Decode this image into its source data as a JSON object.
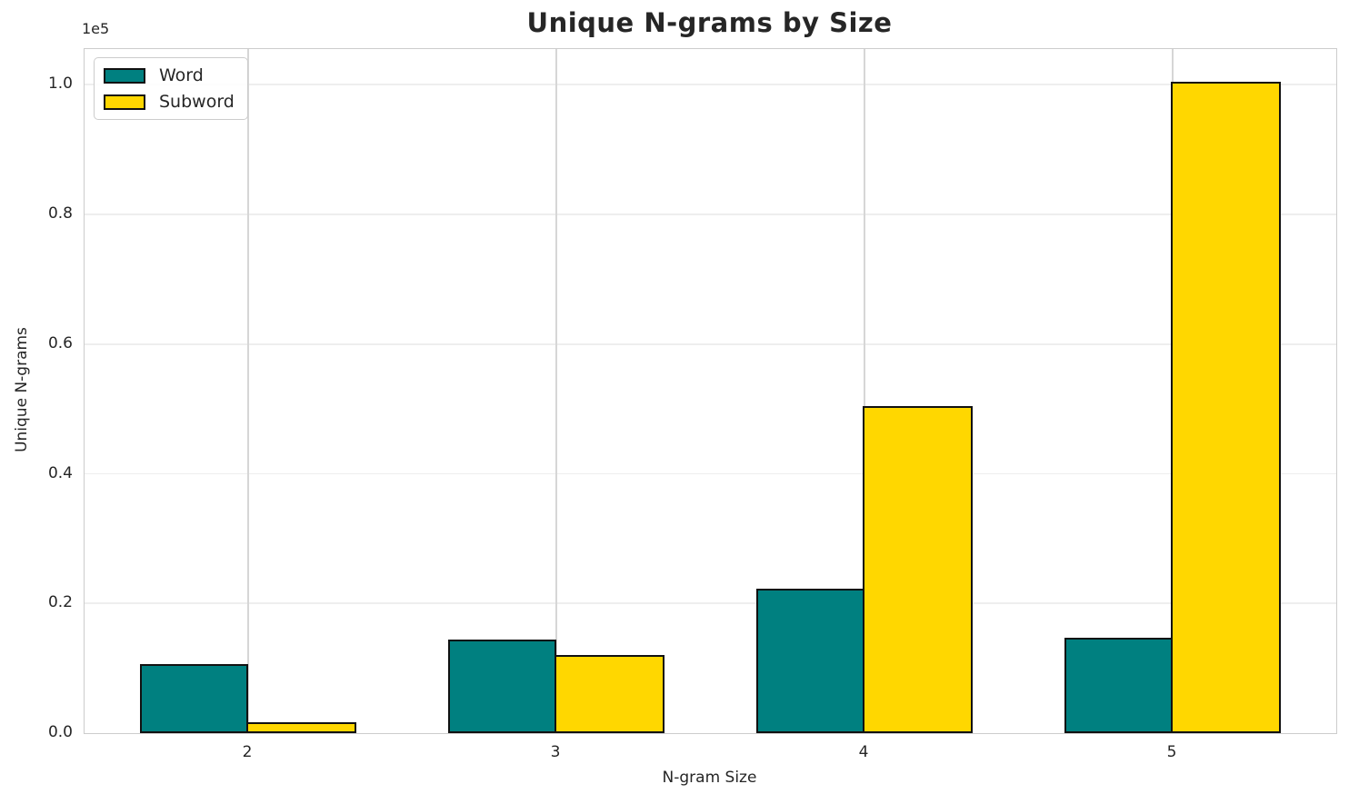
{
  "chart_data": {
    "type": "bar",
    "title": "Unique N-grams by Size",
    "xlabel": "N-gram Size",
    "ylabel": "Unique N-grams",
    "y_offset_text": "1e5",
    "categories": [
      "2",
      "3",
      "4",
      "5"
    ],
    "series": [
      {
        "name": "Word",
        "color": "#008080",
        "values": [
          10700,
          14400,
          22300,
          14700
        ]
      },
      {
        "name": "Subword",
        "color": "#FFD700",
        "values": [
          1700,
          12100,
          50500,
          100500
        ]
      }
    ],
    "ylim": [
      0,
      105500
    ],
    "yticks": [
      0,
      20000,
      40000,
      60000,
      80000,
      100000
    ],
    "ytick_labels": [
      "0.0",
      "0.2",
      "0.4",
      "0.6",
      "0.8",
      "1.0"
    ],
    "grid": true,
    "legend_position": "upper left",
    "bar_edge_color": "#111111",
    "background_color": "#ffffff"
  }
}
